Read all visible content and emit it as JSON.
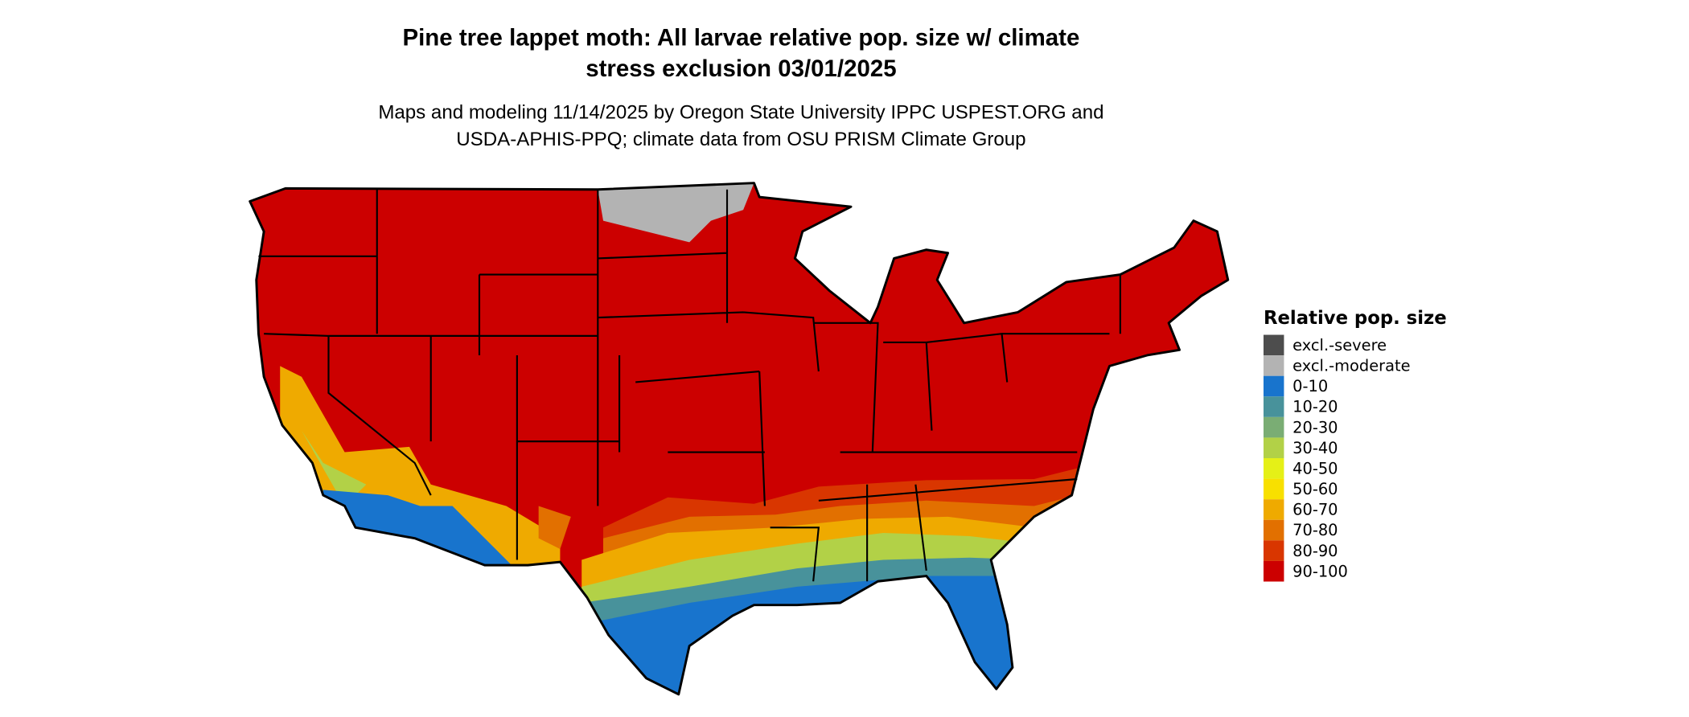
{
  "title_line1": "Pine tree lappet moth: All larvae relative pop. size w/ climate",
  "title_line2": "stress exclusion 03/01/2025",
  "subtitle_line1": "Maps and modeling 11/14/2025 by Oregon State University IPPC USPEST.ORG and",
  "subtitle_line2": "USDA-APHIS-PPQ; climate data from OSU PRISM Climate Group",
  "legend": {
    "title": "Relative pop. size",
    "items": [
      {
        "label": "excl.-severe",
        "color": "#4d4d4d"
      },
      {
        "label": "excl.-moderate",
        "color": "#b3b3b3"
      },
      {
        "label": "0-10",
        "color": "#1874cd"
      },
      {
        "label": "10-20",
        "color": "#48929b"
      },
      {
        "label": "20-30",
        "color": "#7aad74"
      },
      {
        "label": "30-40",
        "color": "#b2d147"
      },
      {
        "label": "40-50",
        "color": "#e5f017"
      },
      {
        "label": "50-60",
        "color": "#f8e000"
      },
      {
        "label": "60-70",
        "color": "#efaa00"
      },
      {
        "label": "70-80",
        "color": "#e27000"
      },
      {
        "label": "80-90",
        "color": "#d93600"
      },
      {
        "label": "90-100",
        "color": "#cc0000"
      }
    ]
  }
}
